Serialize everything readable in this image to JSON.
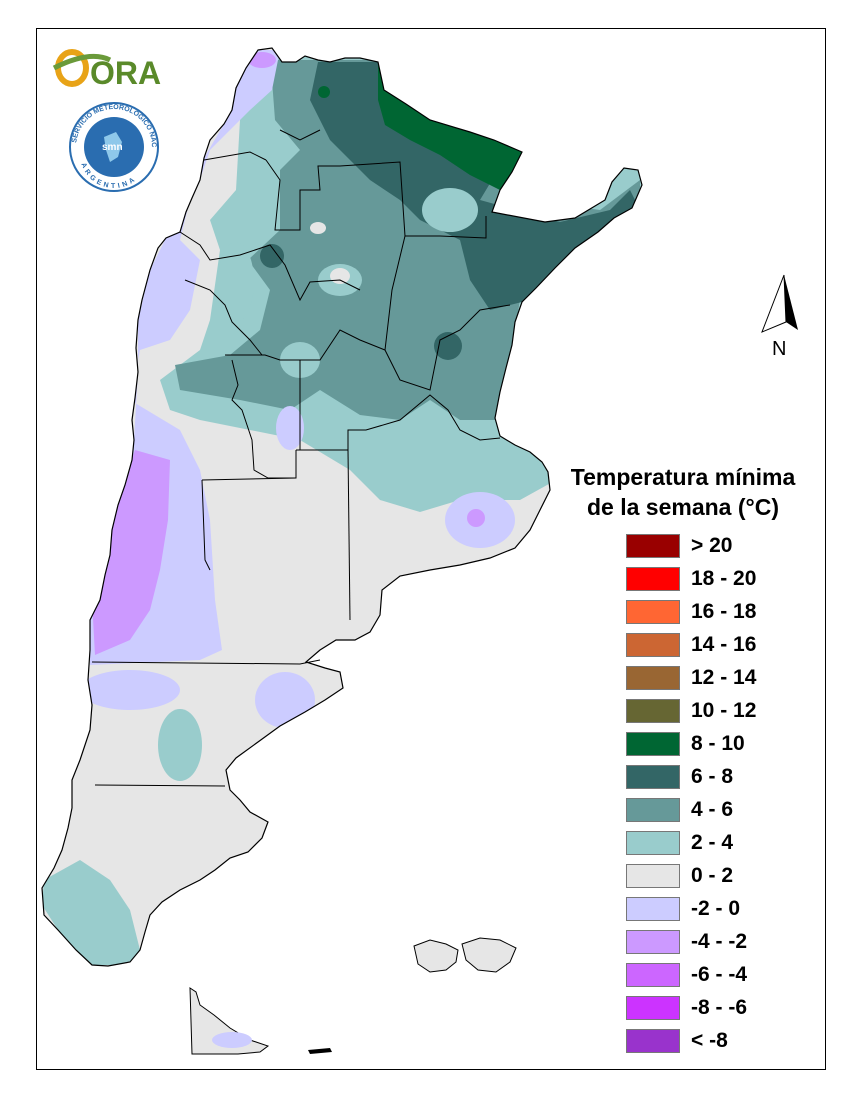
{
  "logos": {
    "ora_text": "ORA",
    "smn_ring_text": "SERVICIO METEOROLÓGICO NACIONAL",
    "smn_center_text": "smn",
    "smn_bottom_text": "ARGENTINA"
  },
  "north_arrow": {
    "label": "N"
  },
  "legend": {
    "title_line1": "Temperatura mínima",
    "title_line2": "de la semana (°C)",
    "items": [
      {
        "label": "> 20",
        "color": "#990000"
      },
      {
        "label": "18 - 20",
        "color": "#ff0000"
      },
      {
        "label": "16 - 18",
        "color": "#ff6633"
      },
      {
        "label": "14 - 16",
        "color": "#cc6633"
      },
      {
        "label": "12 - 14",
        "color": "#996633"
      },
      {
        "label": "10 - 12",
        "color": "#666633"
      },
      {
        "label": "8 - 10",
        "color": "#006633"
      },
      {
        "label": "6 - 8",
        "color": "#336666"
      },
      {
        "label": "4 - 6",
        "color": "#669999"
      },
      {
        "label": "2 - 4",
        "color": "#99cccc"
      },
      {
        "label": "0 - 2",
        "color": "#e6e6e6"
      },
      {
        "label": "-2 - 0",
        "color": "#ccccff"
      },
      {
        "label": "-4 - -2",
        "color": "#cc99ff"
      },
      {
        "label": "-6 - -4",
        "color": "#cc66ff"
      },
      {
        "label": "-8 - -6",
        "color": "#cc33ff"
      },
      {
        "label": "< -8",
        "color": "#9933cc"
      }
    ]
  }
}
